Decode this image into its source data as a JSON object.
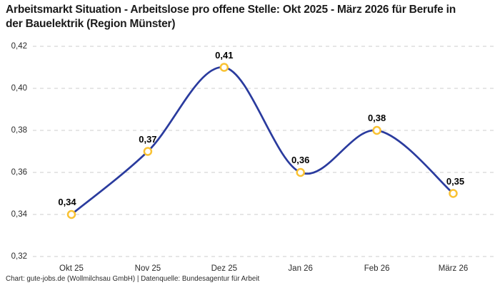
{
  "chart_data": {
    "type": "line",
    "title": "Arbeitsmarkt Situation - Arbeitslose pro offene Stelle: Okt 2025 - März 2026 für Berufe in der Bauelektrik (Region Münster)",
    "categories": [
      "Okt 25",
      "Nov 25",
      "Dez 25",
      "Jan 26",
      "Feb 26",
      "März 26"
    ],
    "values": [
      0.34,
      0.37,
      0.41,
      0.36,
      0.38,
      0.35
    ],
    "point_labels": [
      "0,34",
      "0,37",
      "0,41",
      "0,36",
      "0,38",
      "0,35"
    ],
    "y_ticks": [
      "0,42",
      "0,40",
      "0,38",
      "0,36",
      "0,34",
      "0,32"
    ],
    "y_tick_values": [
      0.42,
      0.4,
      0.38,
      0.36,
      0.34,
      0.32
    ],
    "ylim": [
      0.32,
      0.42
    ],
    "xlabel": "",
    "ylabel": "",
    "legend": "none",
    "grid": "horizontal-dashed",
    "curve": "smooth-spline"
  },
  "footer": {
    "text": "Chart: gute-jobs.de (Wollmilchsau GmbH) | Datenquelle: Bundesagentur für Arbeit"
  },
  "colors": {
    "line": "#2a3b9e",
    "marker_ring": "#f9c233",
    "marker_fill": "#ffffff",
    "gridline": "#cccccc",
    "title_text": "#1b1b1b",
    "axis_text": "#2b2b2b",
    "point_label_text": "#000000",
    "background": "#ffffff"
  }
}
